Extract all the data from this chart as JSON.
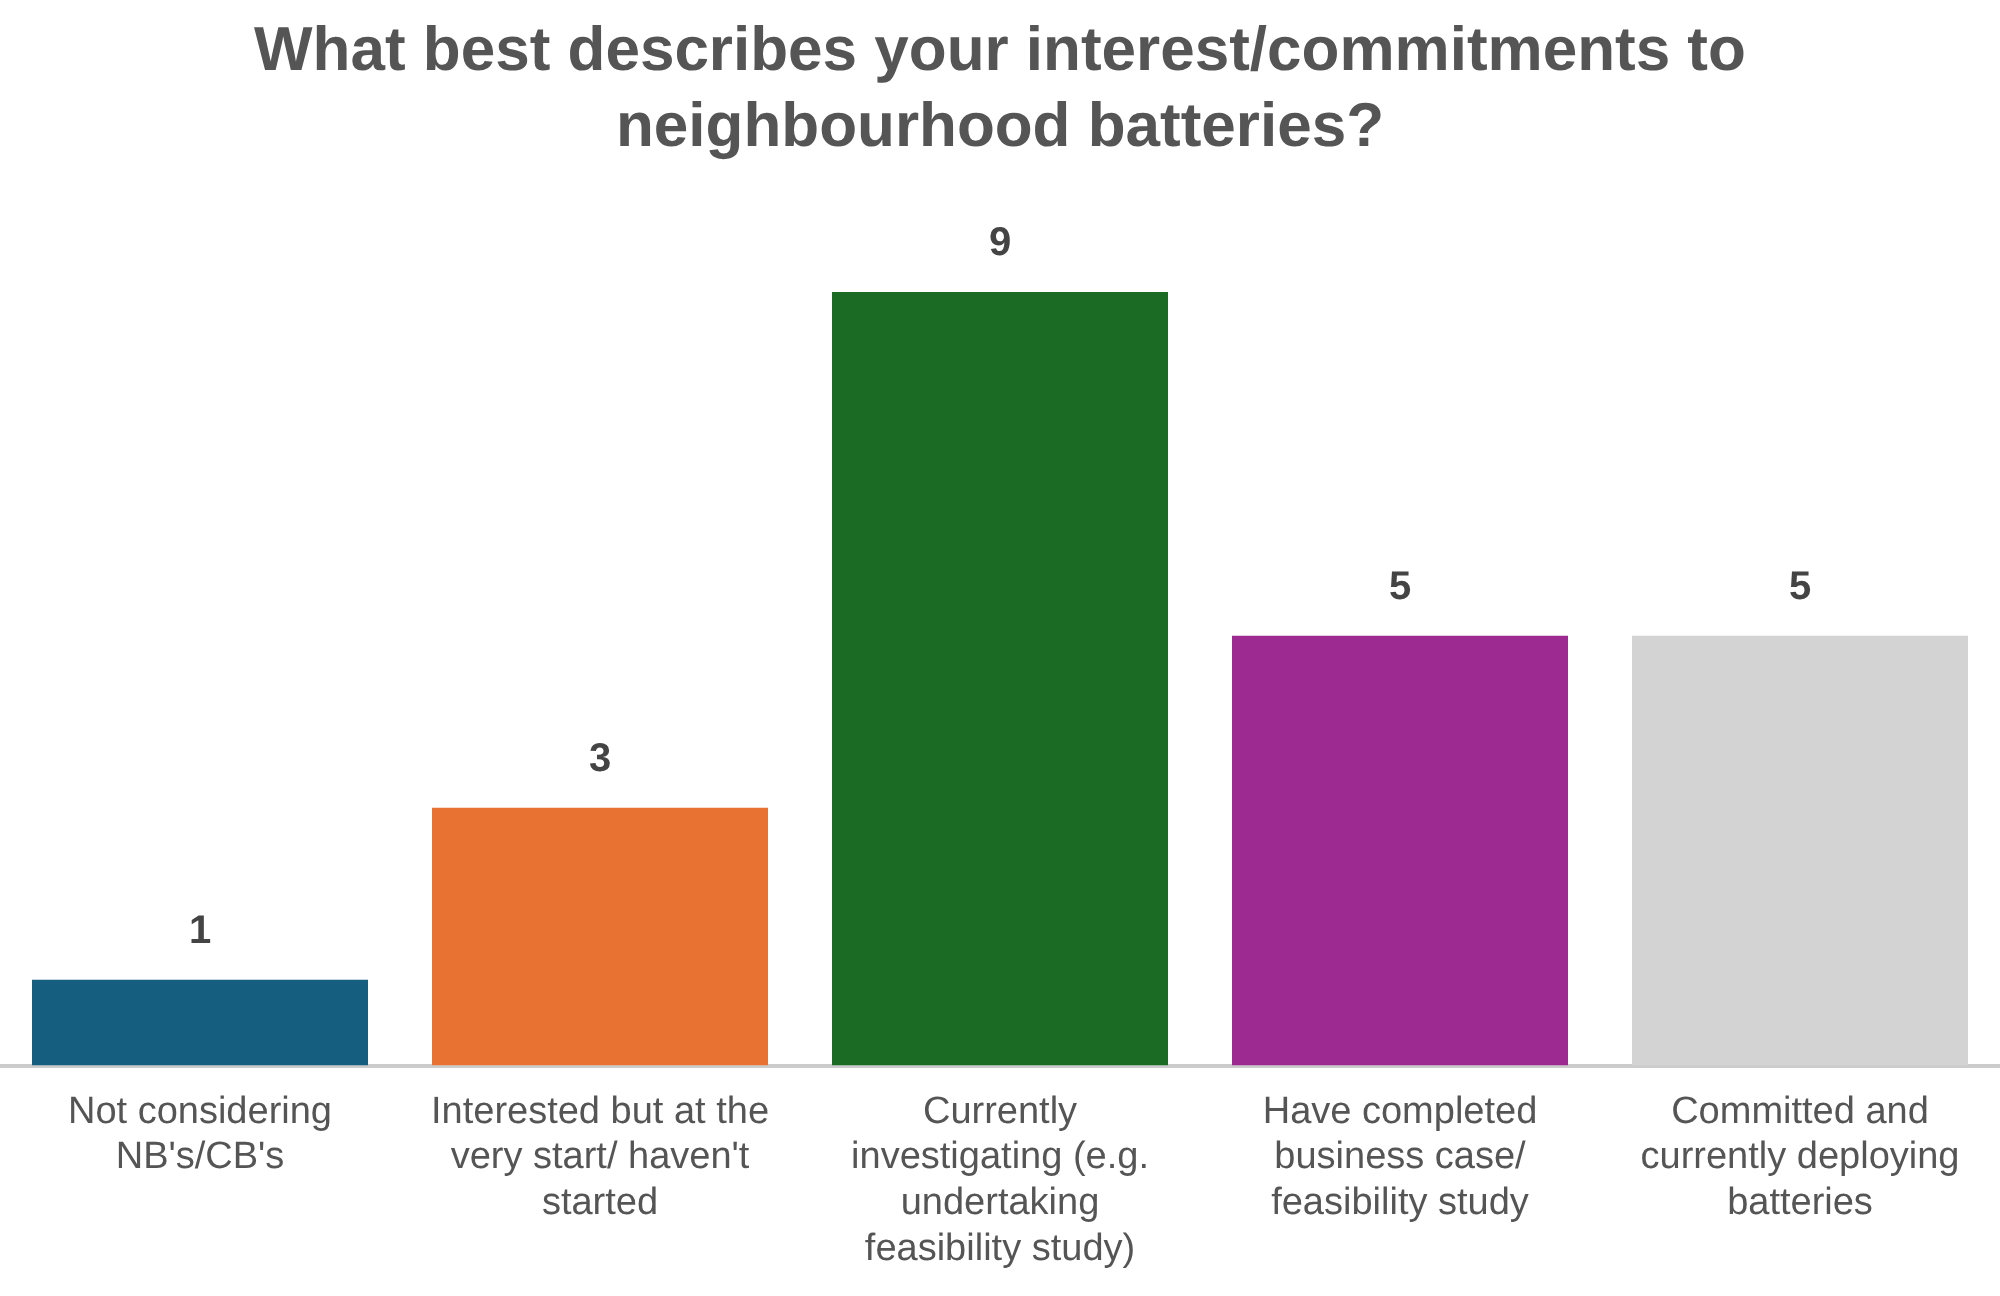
{
  "chart_data": {
    "type": "bar",
    "title": "What best describes your interest/commitments to neighbourhood batteries?",
    "categories": [
      "Not considering NB's/CB's",
      "Interested but at the very start/ haven't started",
      "Currently investigating (e.g. undertaking feasibility study)",
      "Have completed business case/ feasibility study",
      "Committed and currently deploying batteries"
    ],
    "values": [
      1,
      3,
      9,
      5,
      5
    ],
    "colors": [
      "#155e80",
      "#e87232",
      "#1b6b25",
      "#9c2a91",
      "#d3d3d3"
    ],
    "data_labels": true,
    "grid": false,
    "legend": false
  }
}
